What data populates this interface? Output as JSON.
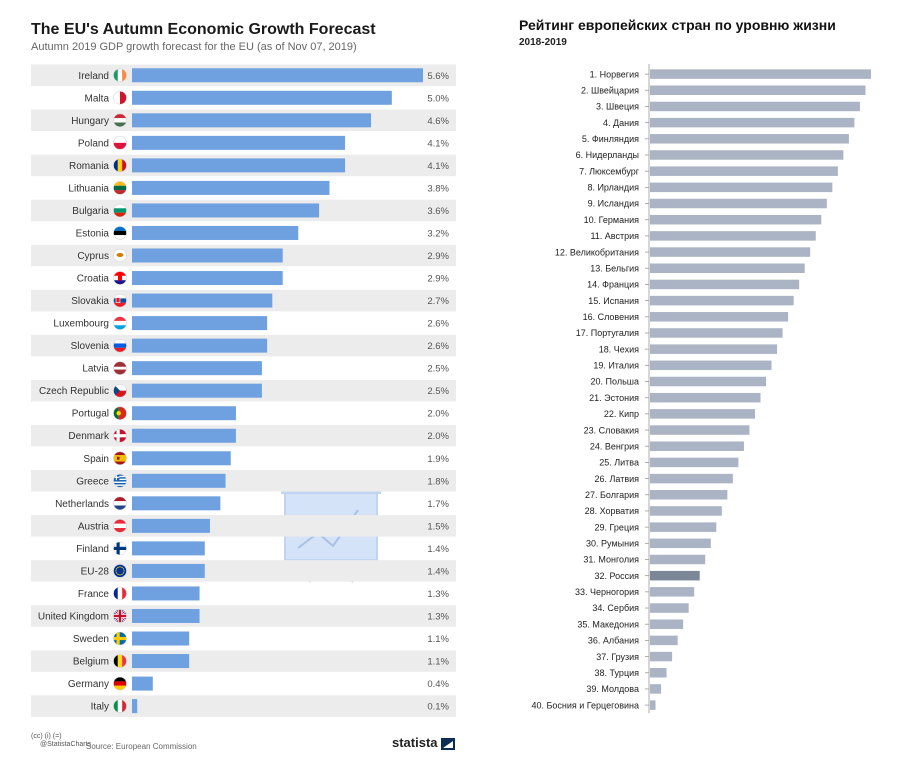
{
  "chart_data": [
    {
      "type": "bar",
      "title": "The EU's Autumn Economic Growth Forecast",
      "subtitle": "Autumn 2019 GDP growth forecast for the EU (as of Nov 07, 2019)",
      "categories": [
        "Ireland",
        "Malta",
        "Hungary",
        "Poland",
        "Romania",
        "Lithuania",
        "Bulgaria",
        "Estonia",
        "Cyprus",
        "Croatia",
        "Slovakia",
        "Luxembourg",
        "Slovenia",
        "Latvia",
        "Czech Republic",
        "Portugal",
        "Denmark",
        "Spain",
        "Greece",
        "Netherlands",
        "Austria",
        "Finland",
        "EU-28",
        "France",
        "United Kingdom",
        "Sweden",
        "Belgium",
        "Germany",
        "Italy"
      ],
      "values": [
        5.6,
        5.0,
        4.6,
        4.1,
        4.1,
        3.8,
        3.6,
        3.2,
        2.9,
        2.9,
        2.7,
        2.6,
        2.6,
        2.5,
        2.5,
        2.0,
        2.0,
        1.9,
        1.8,
        1.7,
        1.5,
        1.4,
        1.4,
        1.3,
        1.3,
        1.1,
        1.1,
        0.4,
        0.1
      ],
      "value_labels": [
        "5.6%",
        "5.0%",
        "4.6%",
        "4.1%",
        "4.1%",
        "3.8%",
        "3.6%",
        "3.2%",
        "2.9%",
        "2.9%",
        "2.7%",
        "2.6%",
        "2.6%",
        "2.5%",
        "2.5%",
        "2.0%",
        "2.0%",
        "1.9%",
        "1.8%",
        "1.7%",
        "1.5%",
        "1.4%",
        "1.4%",
        "1.3%",
        "1.3%",
        "1.1%",
        "1.1%",
        "0.4%",
        "0.1%"
      ],
      "flags": [
        "ireland-flag-icon",
        "malta-flag-icon",
        "hungary-flag-icon",
        "poland-flag-icon",
        "romania-flag-icon",
        "lithuania-flag-icon",
        "bulgaria-flag-icon",
        "estonia-flag-icon",
        "cyprus-flag-icon",
        "croatia-flag-icon",
        "slovakia-flag-icon",
        "luxembourg-flag-icon",
        "slovenia-flag-icon",
        "latvia-flag-icon",
        "czech-republic-flag-icon",
        "portugal-flag-icon",
        "denmark-flag-icon",
        "spain-flag-icon",
        "greece-flag-icon",
        "netherlands-flag-icon",
        "austria-flag-icon",
        "finland-flag-icon",
        "eu-flag-icon",
        "france-flag-icon",
        "united-kingdom-flag-icon",
        "sweden-flag-icon",
        "belgium-flag-icon",
        "germany-flag-icon",
        "italy-flag-icon"
      ],
      "orientation": "horizontal",
      "xlim": [
        0,
        5.6
      ],
      "grid": false,
      "bar_color": "#6fa0e0",
      "stripe_color": "#ececec",
      "watermark": "presentation-chart-icon",
      "footer": {
        "cc_label": "(cc) (i) (=)",
        "handle": "@StatistaCharts",
        "source": "Source: European Commission",
        "brand": "statista"
      }
    },
    {
      "type": "bar",
      "title": "Рейтинг европейских стран по уровню жизни",
      "subtitle": "2018-2019",
      "categories": [
        "1. Норвегия",
        "2. Швейцария",
        "3. Швеция",
        "4. Дания",
        "5. Финляндия",
        "6. Нидерланды",
        "7. Люксембург",
        "8. Ирландия",
        "9. Исландия",
        "10. Германия",
        "11. Австрия",
        "12. Великобритания",
        "13. Бельгия",
        "14. Франция",
        "15. Испания",
        "16. Словения",
        "17. Португалия",
        "18. Чехия",
        "19. Италия",
        "20. Польша",
        "21. Эстония",
        "22. Кипр",
        "23. Словакия",
        "24. Венгрия",
        "25. Литва",
        "26. Латвия",
        "27. Болгария",
        "28. Хорватия",
        "29. Греция",
        "30. Румыния",
        "31. Монголия",
        "32. Россия",
        "33. Черногория",
        "34. Сербия",
        "35. Македония",
        "36. Албания",
        "37. Грузия",
        "38. Турция",
        "39. Молдова",
        "40. Босния и Герцеговина"
      ],
      "values": [
        40,
        39,
        38,
        37,
        36,
        35,
        34,
        33,
        32,
        31,
        30,
        29,
        28,
        27,
        26,
        25,
        24,
        23,
        22,
        21,
        20,
        19,
        18,
        17,
        16,
        15,
        14,
        13,
        12,
        11,
        10,
        9,
        8,
        7,
        6,
        5,
        4,
        3,
        2,
        1
      ],
      "orientation": "horizontal",
      "xlim": [
        0,
        40
      ],
      "grid": false,
      "bar_color": "#aab4c4",
      "highlight": {
        "category": "32. Россия",
        "color": "#7b8797"
      }
    }
  ]
}
